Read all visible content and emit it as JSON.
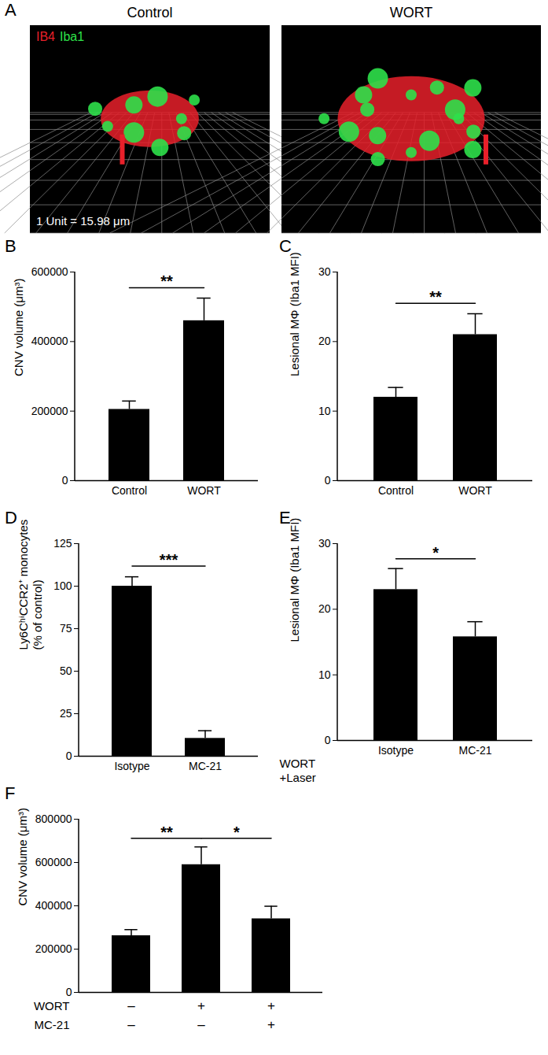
{
  "image_panel": {
    "panel": "A",
    "titles": [
      "Control",
      "WORT"
    ],
    "channels": [
      {
        "name": "IB4",
        "color": "#e8202a"
      },
      {
        "name": "Iba1",
        "color": "#2ee04a"
      }
    ],
    "scale_note": "1 Unit = 15.98 μm"
  },
  "chart_data": [
    {
      "panel": "B",
      "type": "bar",
      "categories": [
        "Control",
        "WORT"
      ],
      "values": [
        205000,
        460000
      ],
      "errors": [
        24000,
        65000
      ],
      "color": "#000000",
      "ylabel": "CNV volume (μm³)",
      "ylim": [
        0,
        600000
      ],
      "yticks": [
        0,
        200000,
        400000,
        600000
      ],
      "annotations": [
        {
          "text": "**",
          "between": [
            0,
            1
          ]
        }
      ]
    },
    {
      "panel": "C",
      "type": "bar",
      "categories": [
        "Control",
        "WORT"
      ],
      "values": [
        12,
        21
      ],
      "errors": [
        1.4,
        3
      ],
      "color": "#000000",
      "ylabel": "Lesional MΦ (Iba1 MFI)",
      "ylim": [
        0,
        30
      ],
      "yticks": [
        0,
        10,
        20,
        30
      ],
      "annotations": [
        {
          "text": "**",
          "between": [
            0,
            1
          ]
        }
      ]
    },
    {
      "panel": "D",
      "type": "bar",
      "categories": [
        "Isotype",
        "MC-21"
      ],
      "values": [
        100,
        10.5
      ],
      "errors": [
        5.5,
        4.5
      ],
      "color": "#000000",
      "ylabel": "Ly6CʰⁱCCR2⁺ monocytes\n(% of control)",
      "ylim": [
        0,
        125
      ],
      "yticks": [
        0,
        25,
        50,
        75,
        100,
        125
      ],
      "annotations": [
        {
          "text": "***",
          "between": [
            0,
            1
          ]
        }
      ]
    },
    {
      "panel": "E",
      "type": "bar",
      "categories": [
        "Isotype",
        "MC-21"
      ],
      "values": [
        23,
        15.8
      ],
      "errors": [
        3.2,
        2.3
      ],
      "color": "#000000",
      "ylabel": "Lesional MΦ (Iba1 MFI)",
      "ylim": [
        0,
        30
      ],
      "yticks": [
        0,
        10,
        20,
        30
      ],
      "x_label": "WORT\n+Laser",
      "annotations": [
        {
          "text": "*",
          "between": [
            0,
            1
          ]
        }
      ]
    },
    {
      "panel": "F",
      "type": "bar",
      "categories": [
        null,
        null,
        null
      ],
      "values": [
        262000,
        590000,
        340000
      ],
      "errors": [
        28000,
        82000,
        58000
      ],
      "color": "#000000",
      "ylabel": "CNV volume (μm³)",
      "ylim": [
        0,
        800000
      ],
      "yticks": [
        0,
        200000,
        400000,
        600000,
        800000
      ],
      "tick_labels": "y",
      "x_table": [
        {
          "label": "WORT",
          "values": [
            "–",
            "+",
            "+"
          ]
        },
        {
          "label": "MC-21",
          "values": [
            "–",
            "–",
            "+"
          ]
        }
      ],
      "annotations": [
        {
          "text": "**",
          "between": [
            0,
            1
          ]
        },
        {
          "text": "*",
          "between": [
            1,
            2
          ]
        }
      ]
    }
  ]
}
